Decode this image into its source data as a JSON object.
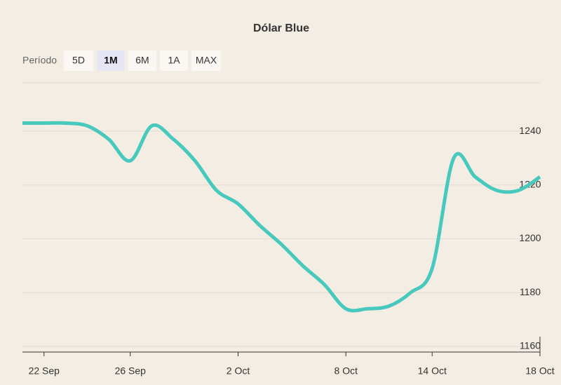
{
  "controls": {
    "label": "Período",
    "options": [
      "5D",
      "1M",
      "6M",
      "1A",
      "MAX"
    ],
    "active": "1M"
  },
  "chart_data": {
    "type": "line",
    "title": "Dólar Blue",
    "categories": [
      null,
      "22 Sep",
      null,
      null,
      null,
      "26 Sep",
      null,
      null,
      null,
      null,
      "2 Oct",
      null,
      null,
      null,
      null,
      "8 Oct",
      null,
      null,
      null,
      "14 Oct",
      null,
      null,
      null,
      null,
      "18 Oct"
    ],
    "series": [
      {
        "name": "Dólar Blue",
        "color": "#48c9be",
        "values": [
          1243,
          1243,
          1243,
          1242,
          1237,
          1229,
          1242,
          1237,
          1229,
          1218,
          1213,
          1205,
          1198,
          1190,
          1183,
          1174,
          1174,
          1175,
          1180,
          1189,
          1230,
          1223,
          1218,
          1218,
          1223
        ]
      }
    ],
    "ylim": [
      1160,
      1258
    ],
    "yticks": [
      1160,
      1180,
      1200,
      1220,
      1240
    ],
    "grid": true
  }
}
